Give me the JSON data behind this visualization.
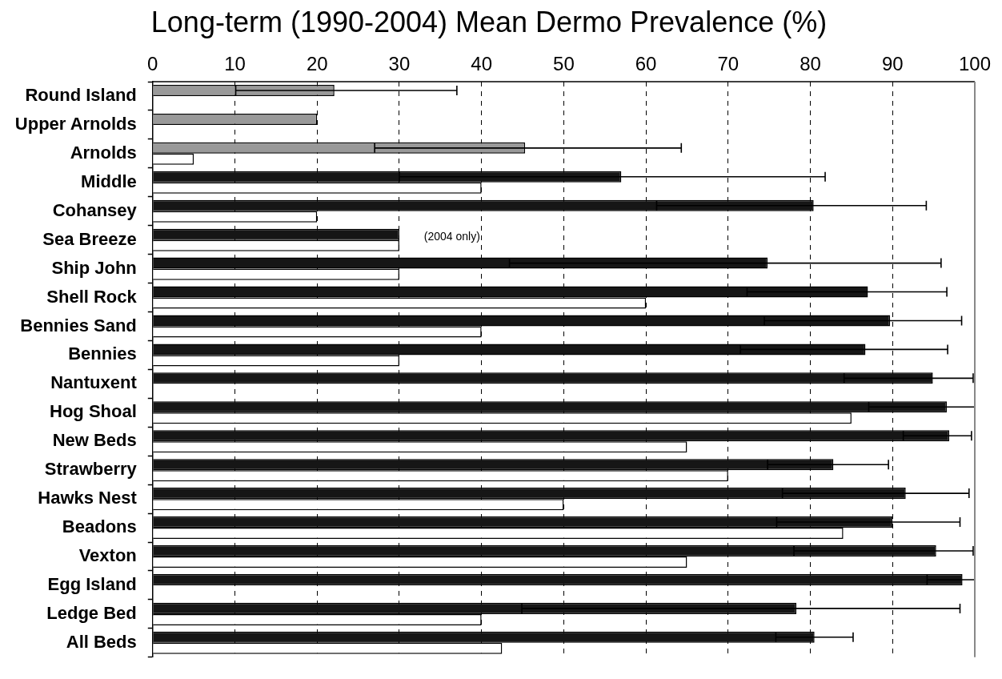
{
  "chart_data": {
    "type": "bar",
    "orientation": "horizontal",
    "title": "Long-term (1990-2004) Mean Dermo Prevalence (%)",
    "categories": [
      "Round Island",
      "Upper Arnolds",
      "Arnolds",
      "Middle",
      "Cohansey",
      "Sea Breeze",
      "Ship John",
      "Shell Rock",
      "Bennies Sand",
      "Bennies",
      "Nantuxent",
      "Hog Shoal",
      "New Beds",
      "Strawberry",
      "Hawks Nest",
      "Beadons",
      "Vexton",
      "Egg Island",
      "Ledge Bed",
      "All Beds"
    ],
    "series": [
      {
        "colors": [
          "#999999",
          "#999999",
          "#999999",
          "#161616",
          "#161616",
          "#161616",
          "#161616",
          "#161616",
          "#161616",
          "#161616",
          "#161616",
          "#161616",
          "#161616",
          "#161616",
          "#161616",
          "#161616",
          "#161616",
          "#161616",
          "#161616",
          "#161616"
        ],
        "values": [
          22.1,
          20,
          45.3,
          57.0,
          80.4,
          30,
          74.8,
          87.0,
          89.7,
          86.7,
          94.9,
          96.6,
          96.9,
          82.8,
          91.6,
          90.0,
          95.3,
          98.5,
          78.3,
          80.5
        ],
        "errors": [
          [
            10.1,
            37.0
          ],
          null,
          [
            27.0,
            64.3
          ],
          [
            30.0,
            81.8
          ],
          [
            61.3,
            94.1
          ],
          null,
          [
            43.4,
            95.9
          ],
          [
            72.3,
            96.6
          ],
          [
            74.4,
            98.4
          ],
          [
            71.5,
            96.7
          ],
          [
            84.1,
            99.8
          ],
          [
            87.1,
            100
          ],
          [
            91.3,
            99.6
          ],
          [
            74.8,
            89.5
          ],
          [
            76.6,
            99.3
          ],
          [
            75.9,
            98.2
          ],
          [
            78.0,
            99.8
          ],
          [
            94.2,
            100
          ],
          [
            44.9,
            98.2
          ],
          4.7
        ]
      },
      {
        "color": "#ffffff",
        "values": [
          null,
          null,
          5,
          40,
          20,
          30,
          30,
          60,
          40,
          30,
          null,
          85,
          65,
          70,
          50,
          84,
          65,
          null,
          40,
          42.5
        ]
      }
    ],
    "xlim": [
      0,
      100
    ],
    "xticks": [
      0,
      10,
      20,
      30,
      40,
      50,
      60,
      70,
      80,
      90,
      100
    ],
    "grid": "x",
    "legend": false,
    "annotations": [
      "(2004 only)"
    ]
  }
}
